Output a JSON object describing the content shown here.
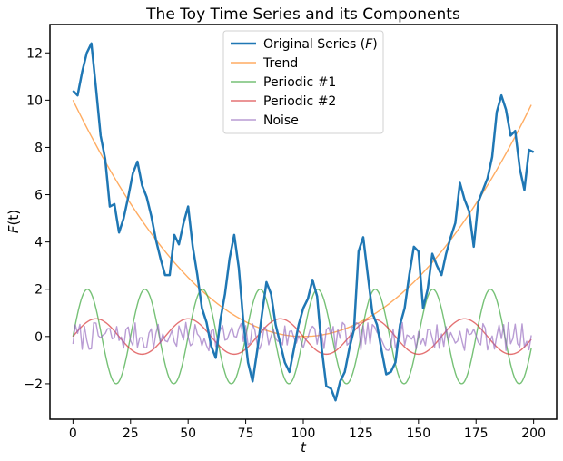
{
  "chart_data": {
    "type": "line",
    "title": "The Toy Time Series and its Components",
    "xlabel": "t",
    "ylabel": "F(t)",
    "xlim": [
      -10,
      210
    ],
    "ylim": [
      -3.5,
      13.2
    ],
    "xticks": [
      0,
      25,
      50,
      75,
      100,
      125,
      150,
      175,
      200
    ],
    "yticks": [
      -2,
      0,
      2,
      4,
      6,
      8,
      10,
      12
    ],
    "xtick_labels": [
      "0",
      "25",
      "50",
      "75",
      "100",
      "125",
      "150",
      "175",
      "200"
    ],
    "ytick_labels": [
      "−2",
      "0",
      "2",
      "4",
      "6",
      "8",
      "10",
      "12"
    ],
    "grid": false,
    "legend_position": "top-center",
    "series": [
      {
        "name": "Original Series (F)",
        "legend_label": "Original Series (",
        "legend_italic": "F",
        "legend_suffix": ")",
        "color": "#1f77b4",
        "x": [
          0,
          2,
          4,
          6,
          8,
          10,
          12,
          14,
          16,
          18,
          20,
          22,
          24,
          26,
          28,
          30,
          32,
          34,
          36,
          38,
          40,
          42,
          44,
          46,
          48,
          50,
          52,
          54,
          56,
          58,
          60,
          62,
          64,
          66,
          68,
          70,
          72,
          74,
          76,
          78,
          80,
          82,
          84,
          86,
          88,
          90,
          92,
          94,
          96,
          98,
          100,
          102,
          104,
          106,
          108,
          110,
          112,
          114,
          116,
          118,
          120,
          122,
          124,
          126,
          128,
          130,
          132,
          134,
          136,
          138,
          140,
          142,
          144,
          146,
          148,
          150,
          152,
          154,
          156,
          158,
          160,
          162,
          164,
          166,
          168,
          170,
          172,
          174,
          176,
          178,
          180,
          182,
          184,
          186,
          188,
          190,
          192,
          194,
          196,
          198,
          200
        ],
        "y": [
          10.4,
          10.2,
          11.2,
          12.0,
          12.4,
          10.5,
          8.5,
          7.5,
          5.5,
          5.6,
          4.4,
          5.0,
          5.9,
          6.9,
          7.4,
          6.4,
          5.9,
          5.1,
          4.1,
          3.3,
          2.6,
          2.6,
          4.3,
          3.9,
          4.8,
          5.5,
          3.8,
          2.6,
          1.2,
          0.6,
          -0.4,
          -0.9,
          0.7,
          1.8,
          3.3,
          4.3,
          2.9,
          0.6,
          -1.1,
          -1.9,
          -0.6,
          0.9,
          2.3,
          1.8,
          0.5,
          -0.3,
          -1.1,
          -1.5,
          -0.5,
          0.5,
          1.2,
          1.6,
          2.4,
          1.7,
          -0.5,
          -2.1,
          -2.2,
          -2.7,
          -1.9,
          -1.5,
          -0.5,
          0.3,
          3.6,
          4.2,
          2.6,
          1.0,
          0.5,
          -0.6,
          -1.6,
          -1.5,
          -1.1,
          0.5,
          1.2,
          2.6,
          3.8,
          3.6,
          1.2,
          2.0,
          3.5,
          3.0,
          2.6,
          3.5,
          4.2,
          4.8,
          6.5,
          5.8,
          5.3,
          3.8,
          5.7,
          6.2,
          6.7,
          7.6,
          9.5,
          10.2,
          9.6,
          8.5,
          8.7,
          7.1,
          6.2,
          7.9,
          7.8
        ]
      },
      {
        "name": "Trend",
        "color": "#ff7f0e",
        "function": "quadratic",
        "x": [
          0,
          10,
          20,
          30,
          40,
          50,
          60,
          70,
          80,
          90,
          100,
          110,
          120,
          130,
          140,
          150,
          160,
          170,
          180,
          190,
          199
        ],
        "y": [
          10.0,
          8.1,
          6.4,
          4.9,
          3.6,
          2.5,
          1.6,
          0.9,
          0.4,
          0.1,
          0.0,
          0.1,
          0.4,
          0.9,
          1.6,
          2.5,
          3.6,
          4.9,
          6.4,
          8.1,
          9.8
        ]
      },
      {
        "name": "Periodic #1",
        "color": "#2ca02c",
        "function": "sine",
        "amplitude": 2.0,
        "period": 25,
        "phase": 0,
        "x_range": [
          0,
          199
        ]
      },
      {
        "name": "Periodic #2",
        "color": "#d62728",
        "function": "sine",
        "amplitude": 0.75,
        "period": 40,
        "phase": 0,
        "x_range": [
          0,
          199
        ]
      },
      {
        "name": "Noise",
        "color": "#9467bd",
        "function": "noise",
        "amplitude": 0.6,
        "seed": 7,
        "x_range": [
          0,
          199
        ]
      }
    ]
  }
}
